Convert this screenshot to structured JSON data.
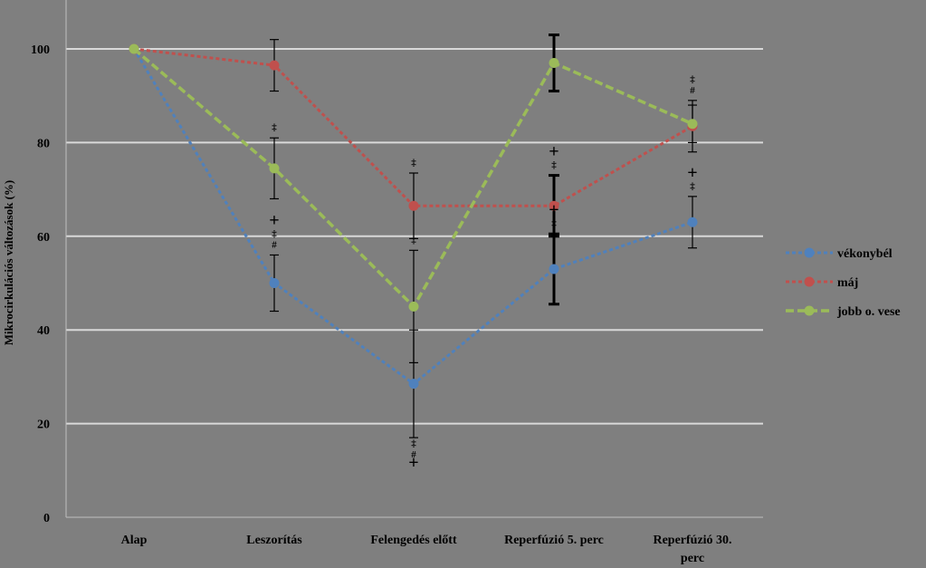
{
  "chart_data": {
    "type": "line",
    "title": "",
    "xlabel": "",
    "ylabel": "Mikrocirkulációs változások (%)",
    "ylim": [
      0,
      100
    ],
    "yticks": [
      0,
      20,
      40,
      60,
      80,
      100
    ],
    "ytick_labels": [
      "0",
      "20",
      "40",
      "60",
      "80",
      "100"
    ],
    "grid": true,
    "legend_position": "right",
    "categories": [
      [
        "Alap"
      ],
      [
        "Leszorítás"
      ],
      [
        "Felengedés előtt"
      ],
      [
        "Reperfúzió 5. perc"
      ],
      [
        "Reperfúzió 30.",
        "perc"
      ]
    ],
    "series": [
      {
        "name": "vékonybél",
        "color": "#4f81bd",
        "values": [
          100,
          50,
          28.5,
          53,
          63
        ],
        "err": [
          0,
          6,
          11.5,
          7.5,
          5.5
        ],
        "thick_err": [
          false,
          false,
          false,
          true,
          false
        ],
        "markers": [
          "",
          "+\n‡\n#",
          "‡\n#\n+",
          "+\n‡",
          "+\n‡"
        ]
      },
      {
        "name": "máj",
        "color": "#c0504d",
        "values": [
          100,
          96.5,
          66.5,
          66.5,
          83.5
        ],
        "err": [
          0,
          5.5,
          7,
          6.5,
          5.5
        ],
        "thick_err": [
          false,
          false,
          false,
          true,
          false
        ],
        "markers": [
          "",
          "",
          "‡",
          "+\n‡",
          "‡\n#"
        ]
      },
      {
        "name": "jobb o. vese",
        "color": "#9bbb59",
        "values": [
          100,
          74.5,
          45,
          97,
          84
        ],
        "err": [
          0,
          6.5,
          12,
          6,
          4
        ],
        "thick_err": [
          false,
          false,
          false,
          true,
          false
        ],
        "markers": [
          "",
          "‡",
          "‡",
          "",
          ""
        ]
      }
    ]
  }
}
